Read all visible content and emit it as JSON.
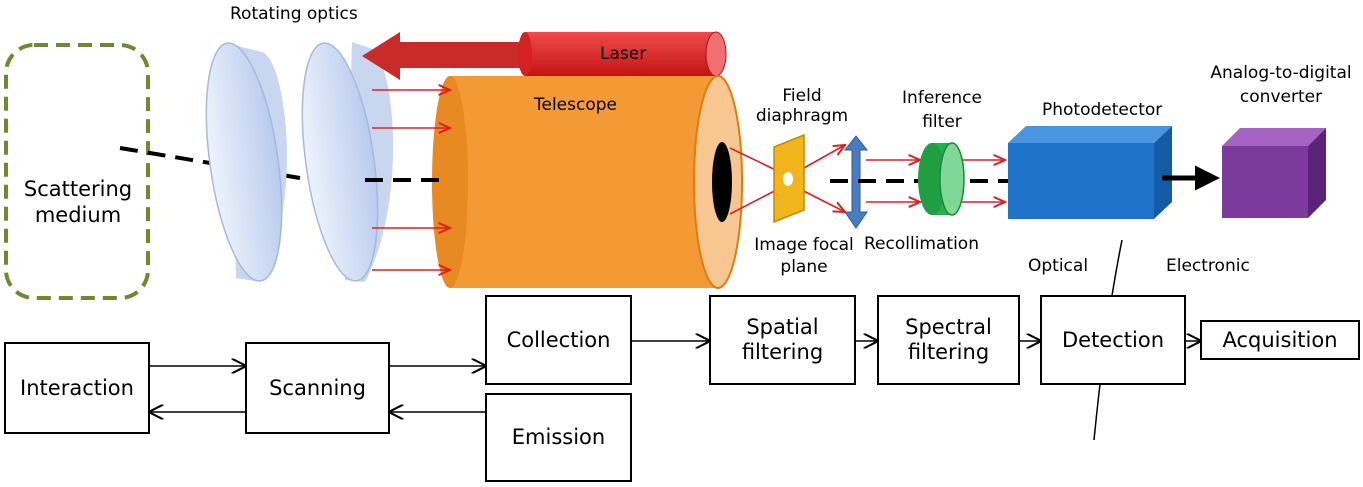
{
  "upper": {
    "rotating_optics": "Rotating optics",
    "scattering_medium": "Scattering\nmedium",
    "laser": "Laser",
    "telescope": "Telescope",
    "field_diaphragm": "Field\ndiaphragm",
    "image_focal_plane": "Image focal\nplane",
    "recollimation": "Recollimation",
    "inference_filter": "Inference\nfilter",
    "photodetector": "Photodetector",
    "adc": "Analog-to-digital\nconverter",
    "optical": "Optical",
    "electronic": "Electronic"
  },
  "blocks": {
    "interaction": "Interaction",
    "scanning": "Scanning",
    "collection": "Collection",
    "emission": "Emission",
    "spatial": "Spatial\nfiltering",
    "spectral": "Spectral\nfiltering",
    "detection": "Detection",
    "acquisition": "Acquisition"
  },
  "colors": {
    "laser": "#e02020",
    "telescope": "#f39a35",
    "lens": "#c8d6f0",
    "medium_border": "#6f8a2e",
    "diaphragm": "#f2b51c",
    "recollimation_lens": "#4a7cc0",
    "filter": "#22b24c",
    "photodetector": "#1e73c8",
    "adc": "#7b3a9c",
    "ray": "#e02020"
  }
}
